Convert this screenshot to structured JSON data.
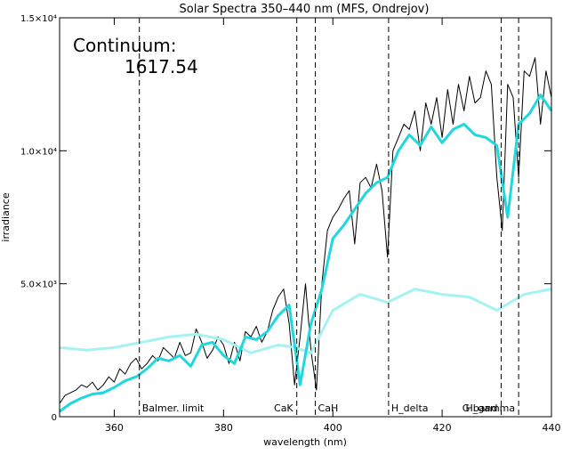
{
  "chart_data": {
    "type": "line",
    "title": "Solar Spectra 350–440 nm (MFS, Ondrejov)",
    "x_label": "wavelength (nm)",
    "y_label": "irradiance",
    "annotations": [
      "Continuum:",
      "1617.54"
    ],
    "xlim": [
      350,
      440
    ],
    "xticks": [
      360,
      380,
      400,
      420,
      440
    ],
    "ylim": [
      0,
      15000
    ],
    "yticks": [
      0,
      {
        "value": 5000,
        "label": "5.0×10³"
      },
      {
        "value": 10000,
        "label": "1.0×10⁴"
      },
      {
        "value": 15000,
        "label": "1.5×10⁴"
      }
    ],
    "lines": [
      {
        "label": "Balmer. limit",
        "x": 364.6
      },
      {
        "label": "CaK",
        "x": 393.4
      },
      {
        "label": "CaH",
        "x": 396.8
      },
      {
        "label": "H_delta",
        "x": 410.2
      },
      {
        "label": "G band",
        "x": 430.8
      },
      {
        "label": "H_gamma",
        "x": 434.0
      }
    ],
    "series": [
      {
        "color": "#000000",
        "x": [
          350,
          351,
          352,
          353,
          354,
          355,
          356,
          357,
          358,
          359,
          360,
          361,
          362,
          363,
          364,
          365,
          366,
          367,
          368,
          369,
          370,
          371,
          372,
          373,
          374,
          375,
          376,
          377,
          378,
          379,
          380,
          381,
          382,
          383,
          384,
          385,
          386,
          387,
          388,
          389,
          390,
          391,
          392,
          393,
          394,
          395,
          396,
          397,
          398,
          399,
          400,
          401,
          402,
          403,
          404,
          405,
          406,
          407,
          408,
          409,
          410,
          411,
          412,
          413,
          414,
          415,
          416,
          417,
          418,
          419,
          420,
          421,
          422,
          423,
          424,
          425,
          426,
          427,
          428,
          429,
          430,
          431,
          432,
          433,
          434,
          435,
          436,
          437,
          438,
          439,
          440
        ],
        "values": [
          500,
          800,
          900,
          1000,
          1200,
          1100,
          1300,
          1000,
          1200,
          1500,
          1300,
          1800,
          1600,
          2000,
          2200,
          1800,
          2000,
          2300,
          2100,
          2600,
          2400,
          2200,
          2800,
          2300,
          2400,
          3300,
          2800,
          2200,
          2500,
          3000,
          2700,
          2000,
          2800,
          2100,
          3200,
          3000,
          3400,
          2800,
          3200,
          4000,
          4500,
          4800,
          3500,
          1200,
          3000,
          5000,
          2500,
          1000,
          5000,
          7000,
          7500,
          7800,
          8200,
          8500,
          6500,
          8800,
          9000,
          8600,
          9500,
          8500,
          6000,
          10000,
          10500,
          11000,
          10800,
          11500,
          10000,
          11800,
          11000,
          12000,
          10500,
          12300,
          11000,
          12500,
          11500,
          12800,
          11800,
          12000,
          13000,
          12500,
          9000,
          7000,
          12500,
          12000,
          9000,
          13000,
          12800,
          13500,
          11000,
          13000,
          12000
        ]
      },
      {
        "color": "#a6f2f2",
        "x": [
          350,
          355,
          360,
          365,
          370,
          375,
          380,
          385,
          390,
          393,
          396,
          400,
          405,
          410,
          415,
          420,
          425,
          430,
          435,
          440
        ],
        "values": [
          2600,
          2500,
          2600,
          2800,
          3000,
          3100,
          2900,
          2400,
          2700,
          2600,
          2400,
          4000,
          4600,
          4300,
          4800,
          4600,
          4500,
          4000,
          4600,
          4800
        ]
      },
      {
        "color": "#1fd8de",
        "x": [
          350,
          352,
          354,
          356,
          358,
          360,
          362,
          364,
          366,
          368,
          370,
          372,
          374,
          376,
          378,
          380,
          382,
          384,
          386,
          388,
          390,
          392,
          394,
          396,
          398,
          400,
          402,
          404,
          406,
          408,
          410,
          412,
          414,
          416,
          418,
          420,
          422,
          424,
          426,
          428,
          430,
          432,
          434,
          436,
          438,
          440
        ],
        "values": [
          200,
          500,
          700,
          850,
          900,
          1100,
          1350,
          1500,
          1800,
          2200,
          2100,
          2300,
          1900,
          2700,
          2800,
          2300,
          2000,
          3000,
          2900,
          3200,
          3800,
          4200,
          1200,
          3500,
          4800,
          6700,
          7200,
          7800,
          8400,
          8800,
          9000,
          10000,
          10600,
          10200,
          10900,
          10300,
          10800,
          11000,
          10600,
          10500,
          10200,
          7500,
          11000,
          11400,
          12100,
          11500
        ]
      }
    ]
  }
}
